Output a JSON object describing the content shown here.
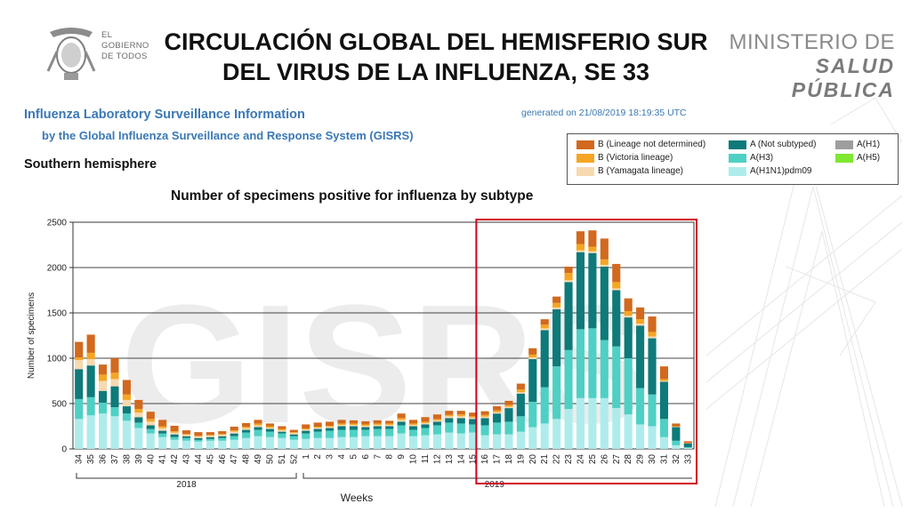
{
  "header": {
    "logo_left_text": [
      "EL",
      "GOBIERNO",
      "DE TODOS"
    ],
    "title_line1": "CIRCULACIÓN GLOBAL DEL HEMISFERIO SUR",
    "title_line2": "DEL VIRUS DE LA INFLUENZA, SE 33",
    "logo_right_line1": "MINISTERIO DE",
    "logo_right_line2": "SALUD PÚBLICA"
  },
  "info": {
    "title": "Influenza Laboratory Surveillance Information",
    "subtitle": "by the Global Influenza Surveillance and Response System (GISRS)",
    "generated": "generated on 21/08/2019 18:19:35 UTC",
    "hemisphere": "Southern hemisphere"
  },
  "watermark": "GISRS",
  "colors": {
    "b_undetermined": "#d2691e",
    "b_victoria": "#f5a623",
    "b_yamagata": "#f7d9b0",
    "a_not_subtyped": "#0e7a7a",
    "a_h3": "#4fd0c4",
    "a_h1n1pdm09": "#aeecec",
    "a_h1": "#9e9e9e",
    "a_h5": "#7ee832",
    "highlight_box": "#d0021b"
  },
  "legend": [
    {
      "label": "B (Lineage not determined)",
      "color": "#d2691e"
    },
    {
      "label": "B (Victoria lineage)",
      "color": "#f5a623"
    },
    {
      "label": "B (Yamagata lineage)",
      "color": "#f7d9b0"
    },
    {
      "label": "A (Not subtyped)",
      "color": "#0e7a7a"
    },
    {
      "label": "A(H3)",
      "color": "#4fd0c4"
    },
    {
      "label": "A(H1N1)pdm09",
      "color": "#aeecec"
    },
    {
      "label": "A(H1)",
      "color": "#9e9e9e"
    },
    {
      "label": "A(H5)",
      "color": "#7ee832"
    }
  ],
  "chart_data": {
    "type": "bar",
    "stacked": true,
    "title": "Number of specimens positive for influenza by subtype",
    "xlabel": "Weeks",
    "ylabel": "Number of specimens",
    "ylim": [
      0,
      2500
    ],
    "yticks": [
      0,
      500,
      1000,
      1500,
      2000,
      2500
    ],
    "grid": true,
    "year_labels": [
      "2018",
      "2019"
    ],
    "highlight": {
      "from_week": "16",
      "to_week": "33",
      "year": "2019"
    },
    "categories": [
      "34",
      "35",
      "36",
      "37",
      "38",
      "39",
      "40",
      "41",
      "42",
      "43",
      "44",
      "45",
      "46",
      "47",
      "48",
      "49",
      "50",
      "51",
      "52",
      "1",
      "2",
      "3",
      "4",
      "5",
      "6",
      "7",
      "8",
      "9",
      "10",
      "11",
      "12",
      "13",
      "14",
      "15",
      "16",
      "17",
      "18",
      "19",
      "20",
      "21",
      "22",
      "23",
      "24",
      "25",
      "26",
      "27",
      "28",
      "29",
      "30",
      "31",
      "32",
      "33"
    ],
    "series": [
      {
        "name": "A(H1N1)pdm09",
        "values": [
          330,
          370,
          390,
          360,
          310,
          230,
          170,
          130,
          100,
          90,
          80,
          90,
          90,
          100,
          120,
          140,
          130,
          120,
          100,
          110,
          120,
          120,
          130,
          130,
          140,
          140,
          140,
          170,
          140,
          150,
          160,
          180,
          170,
          180,
          150,
          160,
          160,
          190,
          240,
          280,
          330,
          440,
          560,
          560,
          560,
          450,
          380,
          270,
          250,
          130,
          40,
          10
        ]
      },
      {
        "name": "A(H3)",
        "values": [
          220,
          200,
          120,
          100,
          80,
          60,
          50,
          40,
          30,
          30,
          20,
          20,
          30,
          40,
          60,
          70,
          60,
          50,
          40,
          60,
          70,
          80,
          80,
          80,
          70,
          80,
          80,
          90,
          70,
          80,
          100,
          110,
          110,
          90,
          110,
          130,
          140,
          170,
          280,
          400,
          580,
          650,
          760,
          770,
          640,
          680,
          620,
          400,
          350,
          200,
          50,
          10
        ]
      },
      {
        "name": "A (Not subtyped)",
        "values": [
          330,
          350,
          130,
          230,
          80,
          60,
          40,
          30,
          30,
          20,
          20,
          20,
          20,
          30,
          30,
          30,
          30,
          20,
          20,
          30,
          30,
          30,
          40,
          40,
          30,
          30,
          30,
          40,
          40,
          40,
          40,
          50,
          60,
          60,
          80,
          100,
          150,
          250,
          470,
          630,
          630,
          750,
          850,
          830,
          810,
          620,
          450,
          690,
          620,
          410,
          150,
          40
        ]
      },
      {
        "name": "A(H1)",
        "values": [
          0,
          0,
          0,
          0,
          0,
          0,
          0,
          0,
          0,
          0,
          0,
          0,
          0,
          0,
          0,
          0,
          0,
          0,
          0,
          0,
          0,
          0,
          0,
          0,
          0,
          0,
          0,
          0,
          0,
          0,
          0,
          0,
          0,
          0,
          0,
          0,
          0,
          0,
          0,
          0,
          0,
          0,
          0,
          0,
          0,
          0,
          0,
          0,
          0,
          0,
          0,
          0
        ]
      },
      {
        "name": "A(H5)",
        "values": [
          0,
          0,
          0,
          0,
          0,
          0,
          0,
          0,
          0,
          0,
          0,
          0,
          0,
          0,
          0,
          0,
          0,
          0,
          0,
          0,
          0,
          0,
          0,
          0,
          0,
          0,
          0,
          0,
          0,
          0,
          0,
          0,
          0,
          0,
          0,
          0,
          0,
          0,
          0,
          0,
          0,
          0,
          0,
          0,
          0,
          0,
          0,
          0,
          0,
          0,
          0,
          0
        ]
      },
      {
        "name": "B (Yamagata lineage)",
        "values": [
          100,
          70,
          110,
          80,
          70,
          50,
          40,
          30,
          20,
          15,
          15,
          15,
          15,
          20,
          20,
          20,
          15,
          15,
          15,
          15,
          15,
          15,
          15,
          15,
          15,
          15,
          15,
          20,
          15,
          15,
          15,
          20,
          20,
          15,
          15,
          15,
          15,
          15,
          20,
          20,
          20,
          20,
          20,
          20,
          20,
          20,
          20,
          20,
          20,
          10,
          5,
          2
        ]
      },
      {
        "name": "B (Victoria lineage)",
        "values": [
          30,
          70,
          70,
          70,
          60,
          40,
          30,
          20,
          15,
          10,
          10,
          10,
          10,
          15,
          15,
          20,
          15,
          15,
          10,
          10,
          10,
          10,
          15,
          15,
          15,
          15,
          15,
          20,
          15,
          15,
          15,
          15,
          20,
          15,
          20,
          20,
          20,
          30,
          30,
          40,
          50,
          80,
          70,
          50,
          60,
          70,
          50,
          50,
          50,
          20,
          5,
          2
        ]
      },
      {
        "name": "B (Lineage not determined)",
        "values": [
          170,
          200,
          110,
          160,
          160,
          100,
          80,
          70,
          60,
          40,
          40,
          30,
          30,
          40,
          40,
          40,
          30,
          30,
          25,
          45,
          45,
          45,
          40,
          35,
          35,
          35,
          30,
          50,
          40,
          50,
          50,
          45,
          40,
          40,
          40,
          45,
          45,
          65,
          70,
          60,
          70,
          70,
          140,
          180,
          230,
          200,
          140,
          130,
          170,
          140,
          30,
          20
        ]
      }
    ]
  }
}
